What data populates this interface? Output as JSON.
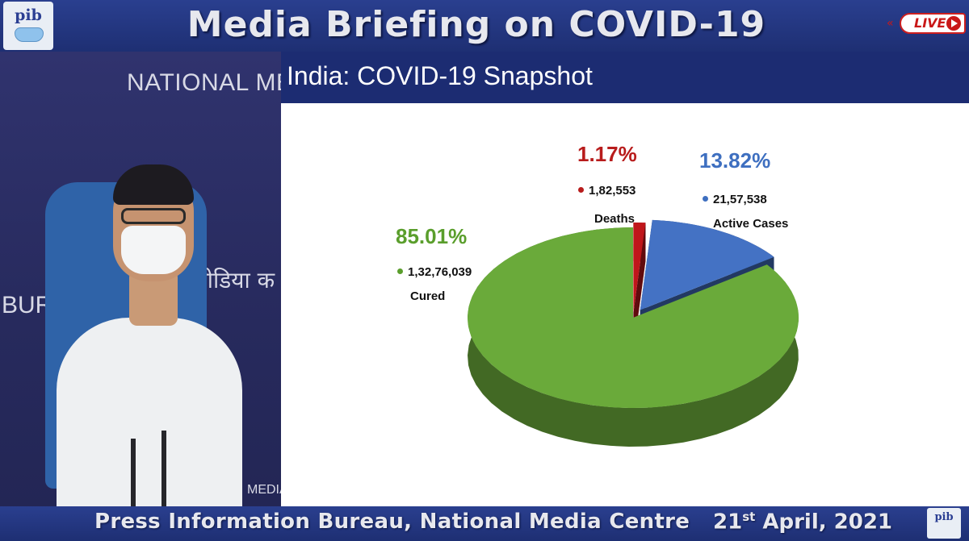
{
  "header": {
    "logo_text": "pib",
    "title": "Media Briefing on COVID-19",
    "live_label": "LIVE"
  },
  "video": {
    "backdrop_text": "NATIONAL MEDIA",
    "backdrop_text_2": "BURE",
    "backdrop_hindi": "मीडिया क",
    "backdrop_text_3": "MEDIA"
  },
  "chart_header": {
    "title": "India: COVID-19 Snapshot"
  },
  "chart_data": {
    "type": "pie",
    "title": "India: COVID-19 Snapshot",
    "slices": [
      {
        "label": "Cured",
        "value": "1,32,76,039",
        "percent": 85.01,
        "percent_label": "85.01%",
        "color": "#6aaa3a",
        "label_color": "#5a9e2c"
      },
      {
        "label": "Deaths",
        "value": "1,82,553",
        "percent": 1.17,
        "percent_label": "1.17%",
        "color": "#c0161b",
        "label_color": "#b81c1c"
      },
      {
        "label": "Active Cases",
        "value": "21,57,538",
        "percent": 13.82,
        "percent_label": "13.82%",
        "color": "#4472c4",
        "label_color": "#3e6fc0"
      }
    ]
  },
  "footer": {
    "text": "Press Information Bureau, National Media Centre",
    "date_day": "21",
    "date_suffix": "st",
    "date_rest": " April, 2021",
    "logo_text": "pib"
  }
}
